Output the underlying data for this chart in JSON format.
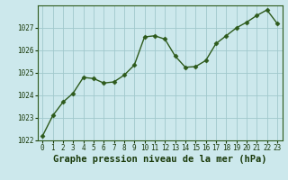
{
  "x": [
    0,
    1,
    2,
    3,
    4,
    5,
    6,
    7,
    8,
    9,
    10,
    11,
    12,
    13,
    14,
    15,
    16,
    17,
    18,
    19,
    20,
    21,
    22,
    23
  ],
  "y": [
    1022.2,
    1023.1,
    1023.7,
    1024.1,
    1024.8,
    1024.75,
    1024.55,
    1024.6,
    1024.9,
    1025.35,
    1026.6,
    1026.65,
    1026.5,
    1025.75,
    1025.25,
    1025.28,
    1025.55,
    1026.3,
    1026.65,
    1027.0,
    1027.25,
    1027.55,
    1027.8,
    1027.2
  ],
  "line_color": "#2d5a1b",
  "marker": "D",
  "marker_size": 2.5,
  "bg_color": "#cce8ec",
  "grid_color": "#a0c8cc",
  "xlabel": "Graphe pression niveau de la mer (hPa)",
  "xlabel_fontsize": 7.5,
  "xlabel_color": "#1a3a0a",
  "ylim": [
    1022,
    1028
  ],
  "xlim": [
    -0.5,
    23.5
  ],
  "yticks": [
    1022,
    1023,
    1024,
    1025,
    1026,
    1027
  ],
  "xticks": [
    0,
    1,
    2,
    3,
    4,
    5,
    6,
    7,
    8,
    9,
    10,
    11,
    12,
    13,
    14,
    15,
    16,
    17,
    18,
    19,
    20,
    21,
    22,
    23
  ],
  "tick_color": "#1a3a0a",
  "tick_fontsize": 5.5,
  "spine_color": "#2d5a1b",
  "linewidth": 1.0
}
